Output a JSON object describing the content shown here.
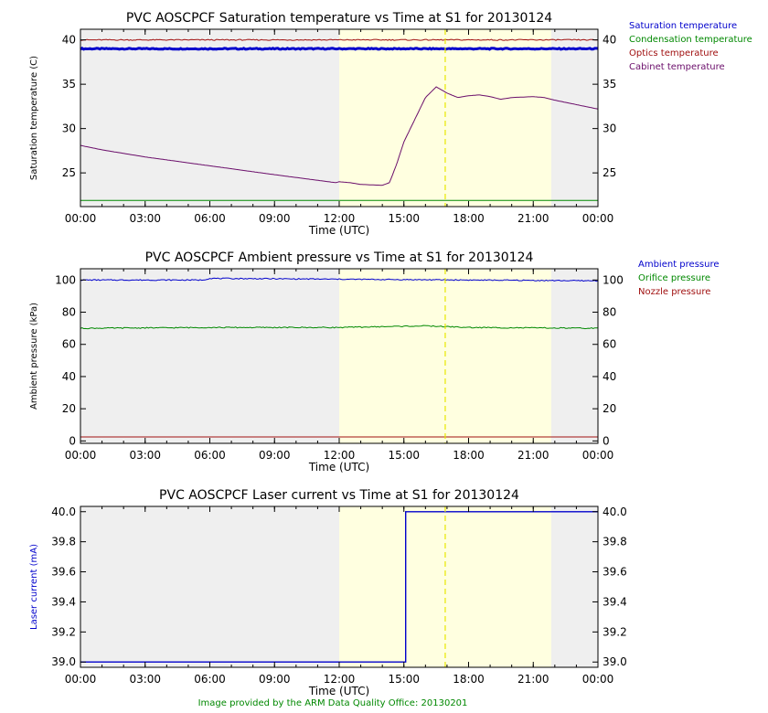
{
  "footer": "Image provided by the ARM Data Quality Office: 20130201",
  "colors": {
    "blue": "#0000cc",
    "green": "#008800",
    "red": "#a01010",
    "purple": "#6a0d6a",
    "night_shade": "#efefef",
    "day_shade": "#ffffe0",
    "marker": "#e8e800"
  },
  "chart_data": [
    {
      "type": "line",
      "title": "PVC AOSCPCF Saturation temperature vs Time at S1 for 20130124",
      "xlabel": "Time (UTC)",
      "ylabel": "Saturation temperature (C)",
      "xlim": [
        "00:00",
        "24:00"
      ],
      "ylim": [
        21.2,
        41.2
      ],
      "xticks": [
        "00:00",
        "03:00",
        "06:00",
        "09:00",
        "12:00",
        "15:00",
        "18:00",
        "21:00",
        "00:00"
      ],
      "yticks": [
        25,
        30,
        35,
        40
      ],
      "grid": false,
      "legend_position": "right",
      "shading": {
        "day_start": "12:00",
        "day_end": "21:50"
      },
      "marker_time": "16:55",
      "series": [
        {
          "name": "Saturation temperature",
          "color": "#0000cc",
          "noisy": true,
          "x": [
            "00:00",
            "24:00"
          ],
          "y": [
            39.0,
            39.0
          ]
        },
        {
          "name": "Condensation temperature",
          "color": "#008800",
          "x": [
            "00:00",
            "24:00"
          ],
          "y": [
            21.9,
            21.9
          ]
        },
        {
          "name": "Optics temperature",
          "color": "#a01010",
          "noisy": true,
          "x": [
            "00:00",
            "24:00"
          ],
          "y": [
            40.0,
            40.0
          ]
        },
        {
          "name": "Cabinet temperature",
          "color": "#6a0d6a",
          "x": [
            "00:00",
            "01:00",
            "03:00",
            "06:00",
            "09:00",
            "11:50",
            "12:00",
            "12:30",
            "13:00",
            "14:00",
            "14:20",
            "14:40",
            "15:00",
            "15:30",
            "16:00",
            "16:30",
            "17:00",
            "17:30",
            "18:00",
            "18:30",
            "19:00",
            "19:30",
            "20:00",
            "21:00",
            "21:30",
            "22:00",
            "23:00",
            "24:00"
          ],
          "y": [
            28.1,
            27.6,
            26.8,
            25.8,
            24.8,
            23.9,
            24.0,
            23.9,
            23.7,
            23.6,
            23.9,
            26.0,
            28.5,
            31.0,
            33.5,
            34.7,
            34.0,
            33.5,
            33.7,
            33.8,
            33.6,
            33.3,
            33.5,
            33.6,
            33.5,
            33.2,
            32.7,
            32.2
          ]
        }
      ]
    },
    {
      "type": "line",
      "title": "PVC AOSCPCF Ambient pressure vs Time at S1 for 20130124",
      "xlabel": "Time (UTC)",
      "ylabel": "Ambient pressure (kPa)",
      "xlim": [
        "00:00",
        "24:00"
      ],
      "ylim": [
        -1.5,
        107
      ],
      "xticks": [
        "00:00",
        "03:00",
        "06:00",
        "09:00",
        "12:00",
        "15:00",
        "18:00",
        "21:00",
        "00:00"
      ],
      "yticks": [
        0,
        20,
        40,
        60,
        80,
        100
      ],
      "grid": false,
      "legend_position": "right",
      "shading": {
        "day_start": "12:00",
        "day_end": "21:50"
      },
      "marker_time": "16:55",
      "series": [
        {
          "name": "Ambient pressure",
          "color": "#0000cc",
          "noisy": true,
          "x": [
            "00:00",
            "05:40",
            "06:00",
            "12:00",
            "18:00",
            "24:00"
          ],
          "y": [
            100.0,
            100.0,
            101.0,
            100.5,
            100.0,
            99.5
          ]
        },
        {
          "name": "Orifice pressure",
          "color": "#008800",
          "noisy": true,
          "x": [
            "00:00",
            "06:00",
            "12:00",
            "16:00",
            "18:00",
            "24:00"
          ],
          "y": [
            70.0,
            70.5,
            70.5,
            71.5,
            70.5,
            70.0
          ]
        },
        {
          "name": "Nozzle pressure",
          "color": "#a01010",
          "x": [
            "00:00",
            "24:00"
          ],
          "y": [
            2.5,
            2.5
          ]
        }
      ]
    },
    {
      "type": "line",
      "title": "PVC AOSCPCF Laser current vs Time at S1 for 20130124",
      "xlabel": "Time (UTC)",
      "ylabel": "Laser current (mA)",
      "ylabel_color": "#0000cc",
      "xlim": [
        "00:00",
        "24:00"
      ],
      "ylim": [
        38.965,
        40.035
      ],
      "xticks": [
        "00:00",
        "03:00",
        "06:00",
        "09:00",
        "12:00",
        "15:00",
        "18:00",
        "21:00",
        "00:00"
      ],
      "yticks": [
        "39.0",
        "39.2",
        "39.4",
        "39.6",
        "39.8",
        "40.0"
      ],
      "grid": false,
      "shading": {
        "day_start": "12:00",
        "day_end": "21:50"
      },
      "marker_time": "16:55",
      "series": [
        {
          "color": "#0000cc",
          "step": true,
          "x": [
            "00:00",
            "15:05",
            "15:05",
            "24:00"
          ],
          "y": [
            39.0,
            39.0,
            40.0,
            40.0
          ]
        }
      ]
    }
  ]
}
